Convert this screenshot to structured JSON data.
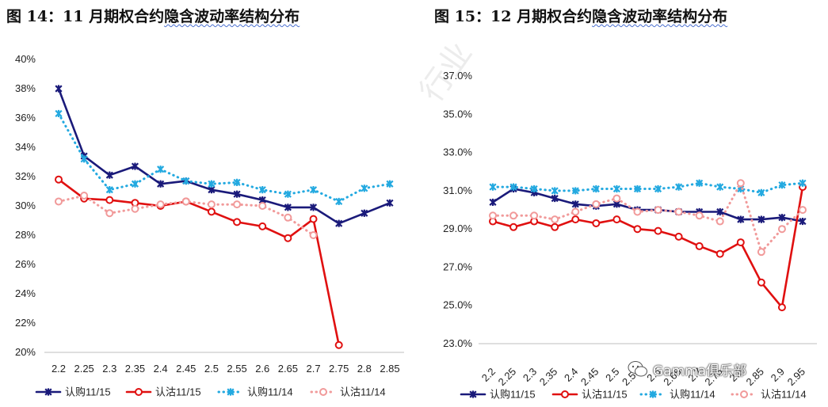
{
  "chart_data": [
    {
      "type": "line",
      "title_num": "图 14：11 月期权合约",
      "title_rest": "隐含波动率结构分布",
      "x": [
        "2.2",
        "2.25",
        "2.3",
        "2.35",
        "2.4",
        "2.45",
        "2.5",
        "2.55",
        "2.6",
        "2.65",
        "2.7",
        "2.75",
        "2.8",
        "2.85"
      ],
      "ylim": [
        0.2,
        0.4
      ],
      "yticks": [
        0.2,
        0.22,
        0.24,
        0.26,
        0.28,
        0.3,
        0.32,
        0.34,
        0.36,
        0.38,
        0.4
      ],
      "ytick_labels": [
        "20%",
        "22%",
        "24%",
        "26%",
        "28%",
        "30%",
        "32%",
        "34%",
        "36%",
        "38%",
        "40%"
      ],
      "legend_position": "bottom",
      "series": [
        {
          "name": "认购11/15",
          "color": "#1a1a7a",
          "style": "solid",
          "marker": "x",
          "values": [
            0.38,
            0.334,
            0.321,
            0.327,
            0.315,
            0.317,
            0.311,
            0.308,
            0.304,
            0.299,
            0.299,
            0.288,
            0.295,
            0.302
          ]
        },
        {
          "name": "认沽11/15",
          "color": "#e01010",
          "style": "solid",
          "marker": "o",
          "values": [
            0.318,
            0.305,
            0.304,
            0.302,
            0.3,
            0.303,
            0.296,
            0.289,
            0.286,
            0.278,
            0.291,
            0.205,
            null,
            null
          ]
        },
        {
          "name": "认购11/14",
          "color": "#23a9e0",
          "style": "dotted",
          "marker": "x",
          "values": [
            0.363,
            0.332,
            0.311,
            0.315,
            0.325,
            0.317,
            0.315,
            0.316,
            0.311,
            0.308,
            0.311,
            0.303,
            0.312,
            0.315
          ]
        },
        {
          "name": "认沽11/14",
          "color": "#f19a9a",
          "style": "dotted",
          "marker": "o",
          "values": [
            0.303,
            0.307,
            0.295,
            0.298,
            0.301,
            0.303,
            0.301,
            0.301,
            0.3,
            0.292,
            0.28,
            null,
            null,
            null
          ]
        }
      ]
    },
    {
      "type": "line",
      "title_num": "图 15：12 月期权合约",
      "title_rest": "隐含波动率结构分布",
      "x": [
        "2.2",
        "2.25",
        "2.3",
        "2.35",
        "2.4",
        "2.45",
        "2.5",
        "2.55",
        "2.6",
        "2.65",
        "2.7",
        "2.75",
        "2.8",
        "2.85",
        "2.9",
        "2.95"
      ],
      "ylim": [
        0.23,
        0.38
      ],
      "yticks": [
        0.23,
        0.25,
        0.27,
        0.29,
        0.31,
        0.33,
        0.35,
        0.37
      ],
      "ytick_labels": [
        "23.0%",
        "25.0%",
        "27.0%",
        "29.0%",
        "31.0%",
        "33.0%",
        "35.0%",
        "37.0%"
      ],
      "legend_position": "bottom",
      "series": [
        {
          "name": "认购11/15",
          "color": "#1a1a7a",
          "style": "solid",
          "marker": "x",
          "values": [
            0.304,
            0.311,
            0.309,
            0.306,
            0.303,
            0.302,
            0.303,
            0.3,
            0.3,
            0.299,
            0.299,
            0.299,
            0.295,
            0.295,
            0.296,
            0.294
          ]
        },
        {
          "name": "认沽11/15",
          "color": "#e01010",
          "style": "solid",
          "marker": "o",
          "values": [
            0.294,
            0.291,
            0.294,
            0.291,
            0.295,
            0.293,
            0.295,
            0.29,
            0.289,
            0.286,
            0.281,
            0.277,
            0.283,
            0.262,
            0.249,
            0.312
          ]
        },
        {
          "name": "认购11/14",
          "color": "#23a9e0",
          "style": "dotted",
          "marker": "x",
          "values": [
            0.312,
            0.312,
            0.311,
            0.31,
            0.31,
            0.311,
            0.311,
            0.311,
            0.311,
            0.312,
            0.314,
            0.312,
            0.311,
            0.309,
            0.313,
            0.314
          ]
        },
        {
          "name": "认沽11/14",
          "color": "#f19a9a",
          "style": "dotted",
          "marker": "o",
          "values": [
            0.297,
            0.297,
            0.297,
            0.295,
            0.299,
            0.303,
            0.306,
            0.299,
            0.3,
            0.299,
            0.297,
            0.294,
            0.314,
            0.278,
            0.29,
            0.3
          ]
        }
      ]
    }
  ],
  "watermark_text": "行业",
  "brand_text": "Gamma俱乐部"
}
